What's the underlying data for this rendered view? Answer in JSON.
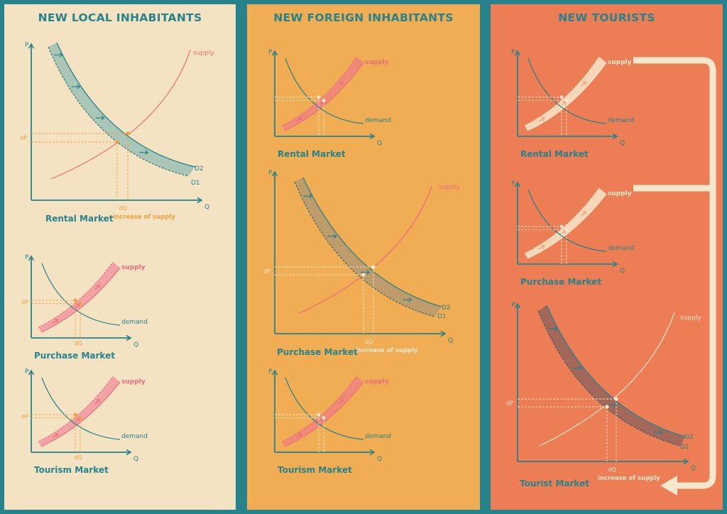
{
  "panels": [
    {
      "title": "NEW LOCAL INHABITANTS",
      "bg": "#f3e3c3"
    },
    {
      "title": "NEW FOREIGN INHABITANTS",
      "bg": "#f0ad54"
    },
    {
      "title": "NEW TOURISTS",
      "bg": "#ec7d55"
    }
  ],
  "labels": {
    "p": "P",
    "q": "Q",
    "dp": "dP",
    "dq": "dQ",
    "supply": "supply",
    "demand": "demand",
    "d1": "D1",
    "d2": "D2",
    "increase": "increase of supply"
  },
  "markets": {
    "rental": "Rental Market",
    "purchase": "Purchase Market",
    "tourism": "Tourism Market",
    "tourist": "Tourist Market"
  },
  "colors": {
    "frame": "#26838b",
    "teal": "#26838b",
    "pink": "#ec6d7c",
    "orange": "#f09f3a",
    "cream": "#f7e8cd"
  }
}
